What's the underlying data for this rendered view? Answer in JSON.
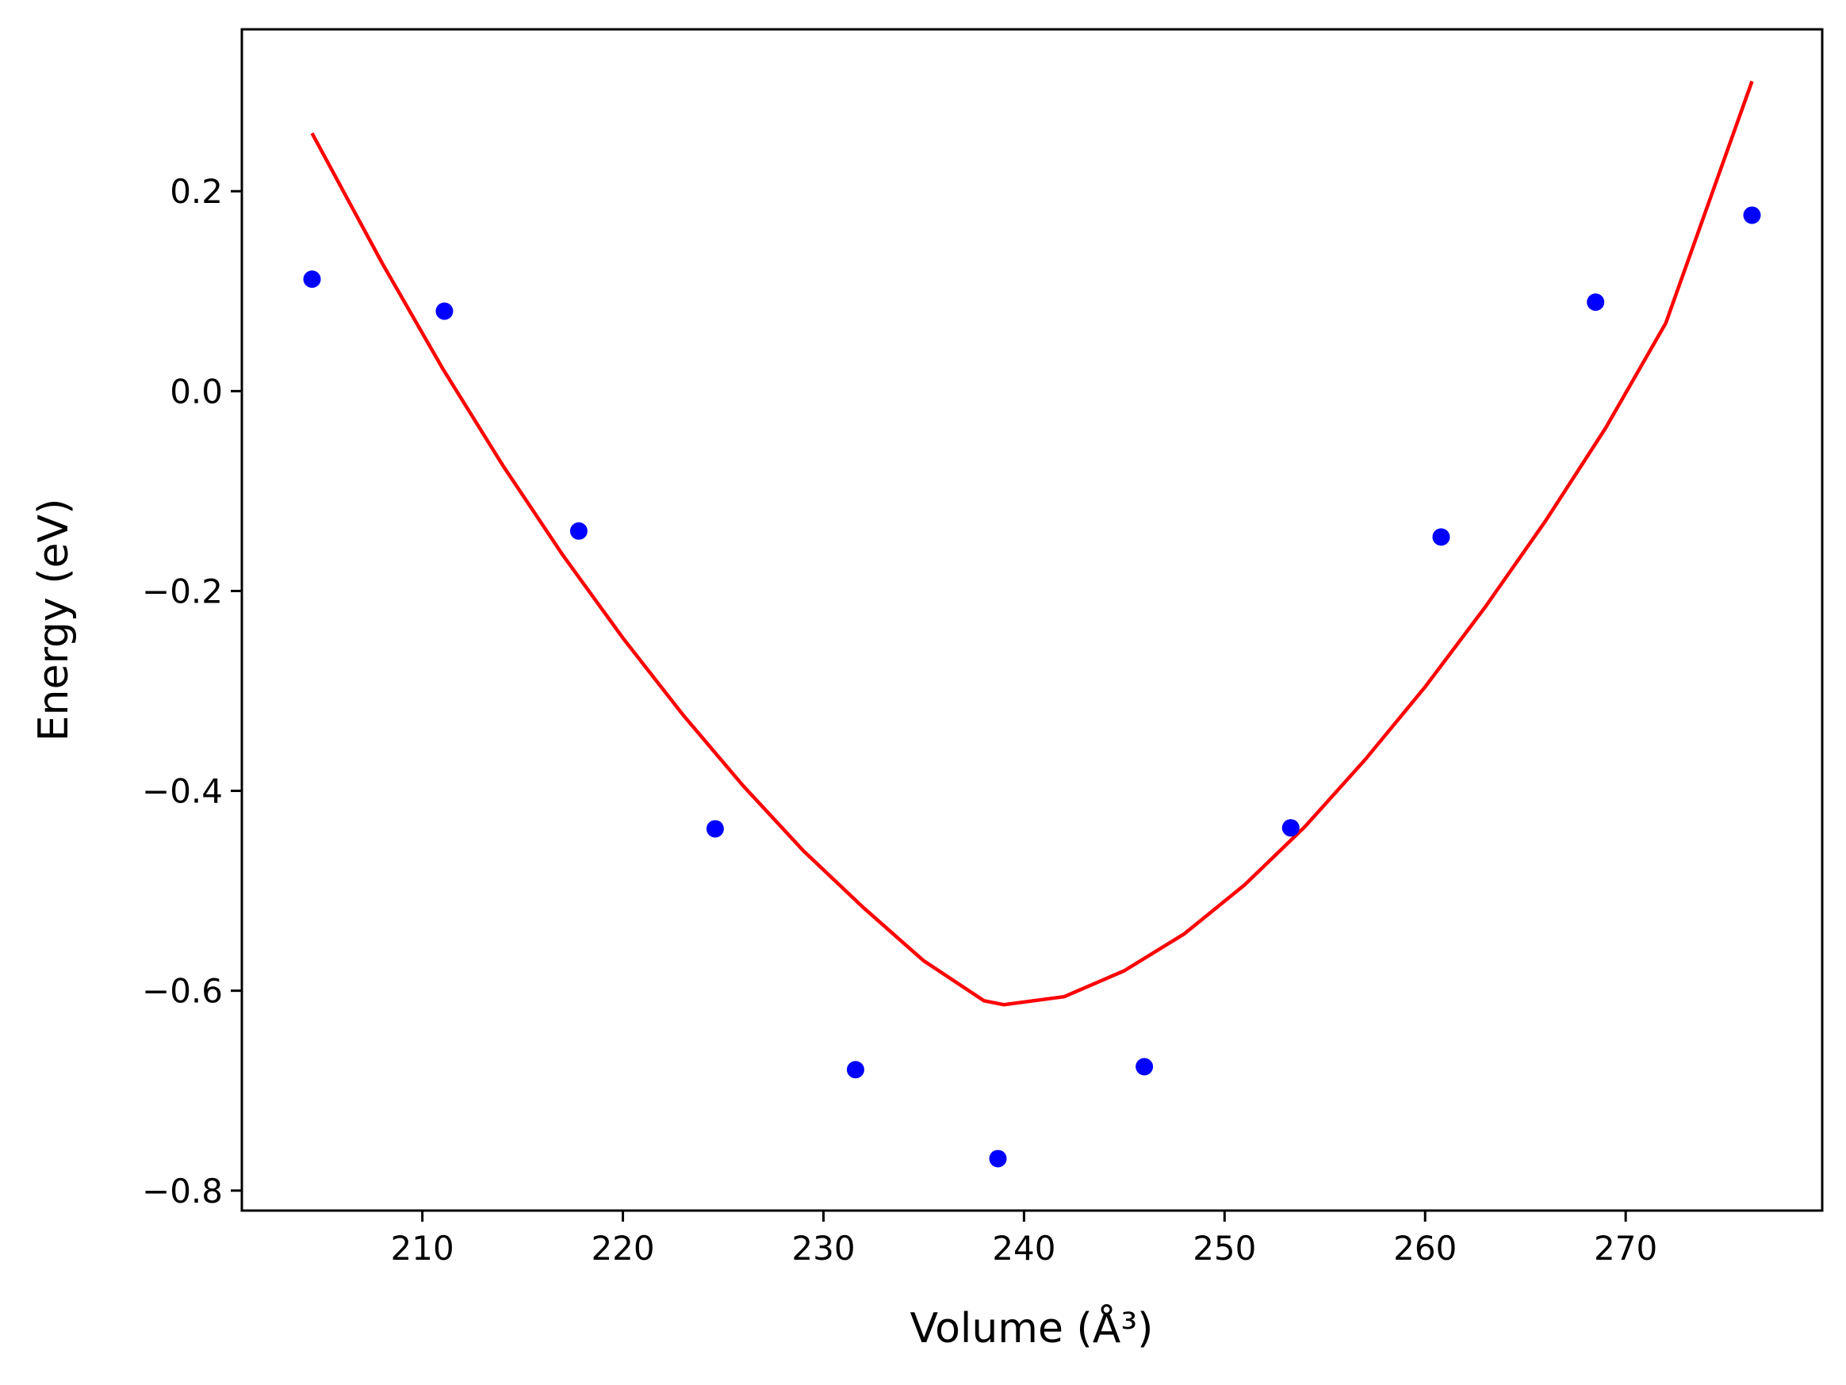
{
  "chart_data": {
    "type": "scatter",
    "title": "",
    "xlabel": "Volume (Å³)",
    "ylabel": "Energy (eV)",
    "xlim": [
      201,
      279.8
    ],
    "ylim": [
      -0.82,
      0.362
    ],
    "xticks": [
      210,
      220,
      230,
      240,
      250,
      260,
      270
    ],
    "yticks": [
      0.2,
      0.0,
      -0.2,
      -0.4,
      -0.6,
      -0.8
    ],
    "xtick_labels": [
      "210",
      "220",
      "230",
      "240",
      "250",
      "260",
      "270"
    ],
    "ytick_labels": [
      "0.2",
      "0.0",
      "−0.2",
      "−0.4",
      "−0.6",
      "−0.8"
    ],
    "grid": false,
    "series": [
      {
        "kind": "scatter",
        "color": "#0000ff",
        "x": [
          204.5,
          211.1,
          217.8,
          224.6,
          231.6,
          238.7,
          246.0,
          253.3,
          260.8,
          268.5,
          276.3
        ],
        "y": [
          0.112,
          0.08,
          -0.14,
          -0.438,
          -0.679,
          -0.768,
          -0.676,
          -0.437,
          -0.146,
          0.089,
          0.176
        ]
      },
      {
        "kind": "line",
        "color": "#ff0000",
        "x": [
          204.5,
          208.0,
          211.0,
          214.0,
          217.0,
          220.0,
          223.0,
          226.0,
          229.0,
          232.0,
          235.0,
          238.0,
          239.0,
          242.0,
          245.0,
          248.0,
          251.0,
          254.0,
          257.0,
          260.0,
          263.0,
          266.0,
          269.0,
          272.0,
          276.3
        ],
        "y": [
          0.258,
          0.128,
          0.023,
          -0.074,
          -0.164,
          -0.247,
          -0.324,
          -0.395,
          -0.46,
          -0.517,
          -0.57,
          -0.61,
          -0.614,
          -0.606,
          -0.58,
          -0.543,
          -0.494,
          -0.436,
          -0.369,
          -0.296,
          -0.216,
          -0.13,
          -0.037,
          0.068,
          0.31
        ]
      }
    ]
  }
}
